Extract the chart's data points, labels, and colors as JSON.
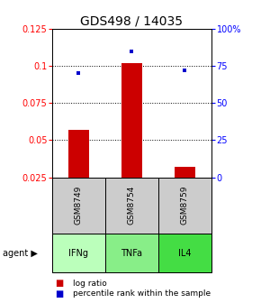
{
  "title": "GDS498 / 14035",
  "samples": [
    "GSM8749",
    "GSM8754",
    "GSM8759"
  ],
  "agents": [
    "IFNg",
    "TNFa",
    "IL4"
  ],
  "log_ratios": [
    0.057,
    0.102,
    0.032
  ],
  "percentile_ranks": [
    0.7,
    0.85,
    0.72
  ],
  "ylim_left": [
    0.025,
    0.125
  ],
  "ylim_right": [
    0.0,
    1.0
  ],
  "yticks_left": [
    0.025,
    0.05,
    0.075,
    0.1,
    0.125
  ],
  "ytick_labels_left": [
    "0.025",
    "0.05",
    "0.075",
    "0.1",
    "0.125"
  ],
  "yticks_right": [
    0.0,
    0.25,
    0.5,
    0.75,
    1.0
  ],
  "ytick_labels_right": [
    "0",
    "25",
    "50",
    "75",
    "100%"
  ],
  "bar_color": "#cc0000",
  "dot_color": "#0000cc",
  "agent_colors": [
    "#bbffbb",
    "#88ee88",
    "#44dd44"
  ],
  "sample_bg_color": "#cccccc",
  "title_fontsize": 10,
  "tick_fontsize": 7,
  "bar_width": 0.4,
  "xlim": [
    -0.5,
    2.5
  ]
}
